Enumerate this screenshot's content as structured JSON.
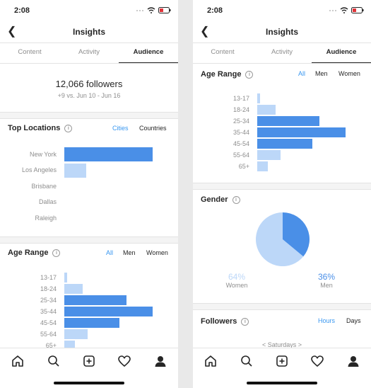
{
  "colors": {
    "bar_dark": "#4a8fe7",
    "bar_light": "#bcd7f8",
    "accent": "#3897f0",
    "text": "#262626",
    "muted": "#8e8e8e"
  },
  "left": {
    "status": {
      "time": "2:08"
    },
    "title": "Insights",
    "tabs": [
      {
        "label": "Content"
      },
      {
        "label": "Activity"
      },
      {
        "label": "Audience"
      }
    ],
    "active_tab": "Audience",
    "followers": {
      "count": "12,066 followers",
      "delta": "+9 vs. Jun 10 - Jun 16"
    },
    "top_locations": {
      "title": "Top Locations",
      "filters": {
        "cities": "Cities",
        "countries": "Countries"
      },
      "selected": "Cities",
      "chart_data": {
        "type": "bar",
        "orientation": "horizontal",
        "categories": [
          "New York",
          "Los Angeles",
          "Brisbane",
          "Dallas",
          "Raleigh"
        ],
        "values": [
          100,
          25,
          0,
          0,
          0
        ]
      }
    },
    "age_range": {
      "title": "Age Range",
      "filters": {
        "all": "All",
        "men": "Men",
        "women": "Women"
      },
      "selected": "All",
      "chart_data": {
        "type": "bar",
        "orientation": "horizontal",
        "categories": [
          "13-17",
          "18-24",
          "25-34",
          "35-44",
          "45-54",
          "55-64",
          "65+"
        ],
        "values": [
          3,
          21,
          70,
          100,
          62,
          26,
          12
        ]
      }
    },
    "icons": {
      "home": "home-icon",
      "search": "search-icon",
      "add": "add-post-icon",
      "heart": "heart-icon",
      "profile": "profile-icon"
    }
  },
  "right": {
    "status": {
      "time": "2:08"
    },
    "title": "Insights",
    "tabs": [
      {
        "label": "Content"
      },
      {
        "label": "Activity"
      },
      {
        "label": "Audience"
      }
    ],
    "active_tab": "Audience",
    "age_range": {
      "title": "Age Range",
      "filters": {
        "all": "All",
        "men": "Men",
        "women": "Women"
      },
      "selected": "All",
      "chart_data": {
        "type": "bar",
        "orientation": "horizontal",
        "categories": [
          "13-17",
          "18-24",
          "25-34",
          "35-44",
          "45-54",
          "55-64",
          "65+"
        ],
        "values": [
          3,
          21,
          70,
          100,
          62,
          26,
          12
        ]
      }
    },
    "gender": {
      "title": "Gender",
      "chart_data": {
        "type": "pie",
        "categories": [
          "Women",
          "Men"
        ],
        "values": [
          64,
          36
        ]
      },
      "women_pct": "64%",
      "women_label": "Women",
      "men_pct": "36%",
      "men_label": "Men"
    },
    "followers_section": {
      "title": "Followers",
      "filters": {
        "hours": "Hours",
        "days": "Days"
      },
      "selected": "Hours",
      "peek": "<  Saturdays  >"
    }
  }
}
